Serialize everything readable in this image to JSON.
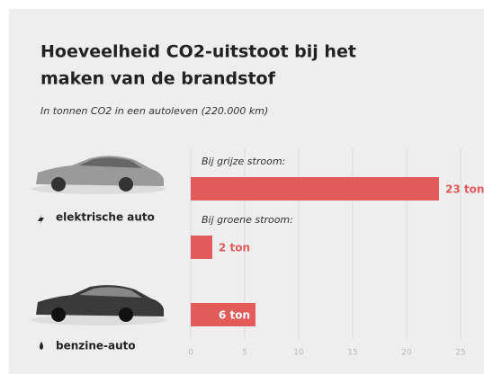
{
  "chart_data": {
    "type": "bar",
    "orientation": "horizontal",
    "title_lines": [
      "Hoeveelheid CO2-uitstoot bij het",
      "maken van de brandstof"
    ],
    "subtitle": "In tonnen CO2 in een autoleven (220.000 km)",
    "groups": [
      "elektrische auto",
      "benzine-auto"
    ],
    "categories": [
      "Bij grijze stroom:",
      "Bij groene stroom:",
      null
    ],
    "values": [
      23,
      2,
      6
    ],
    "value_labels": [
      "23 ton",
      "2 ton",
      "6 ton"
    ],
    "color": "#e25a5a",
    "xlim": [
      0,
      27
    ],
    "xticks": [
      0,
      5,
      10,
      15,
      20,
      25
    ],
    "grid": true
  }
}
